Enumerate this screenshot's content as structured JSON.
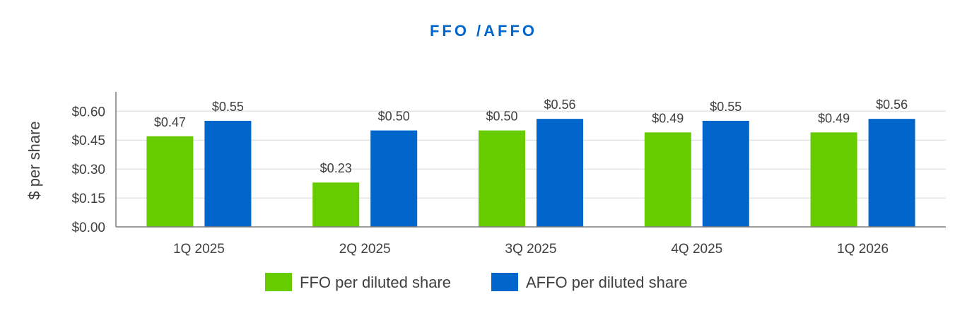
{
  "chart_data": {
    "type": "bar",
    "title": "FFO /AFFO",
    "xlabel": "",
    "ylabel": "$ per share",
    "categories": [
      "1Q 2025",
      "2Q 2025",
      "3Q 2025",
      "4Q 2025",
      "1Q 2026"
    ],
    "series": [
      {
        "name": "FFO per diluted share",
        "values": [
          0.47,
          0.23,
          0.5,
          0.49,
          0.49
        ],
        "labels": [
          "$0.47",
          "$0.23",
          "$0.50",
          "$0.49",
          "$0.49"
        ],
        "color": "#66CC00"
      },
      {
        "name": "AFFO per diluted share",
        "values": [
          0.55,
          0.5,
          0.56,
          0.55,
          0.56
        ],
        "labels": [
          "$0.55",
          "$0.50",
          "$0.56",
          "$0.55",
          "$0.56"
        ],
        "color": "#0066CC"
      }
    ],
    "ylim": [
      0,
      0.7
    ],
    "yticks": [
      0.0,
      0.15,
      0.3,
      0.45,
      0.6
    ],
    "ytick_labels": [
      "$0.00",
      "$0.15",
      "$0.30",
      "$0.45",
      "$0.60"
    ],
    "grid": true,
    "legend": "bottom-center",
    "colors": {
      "title": "#0066CC",
      "grid": "#D9D9D9",
      "axis": "#7F7F7F"
    }
  }
}
